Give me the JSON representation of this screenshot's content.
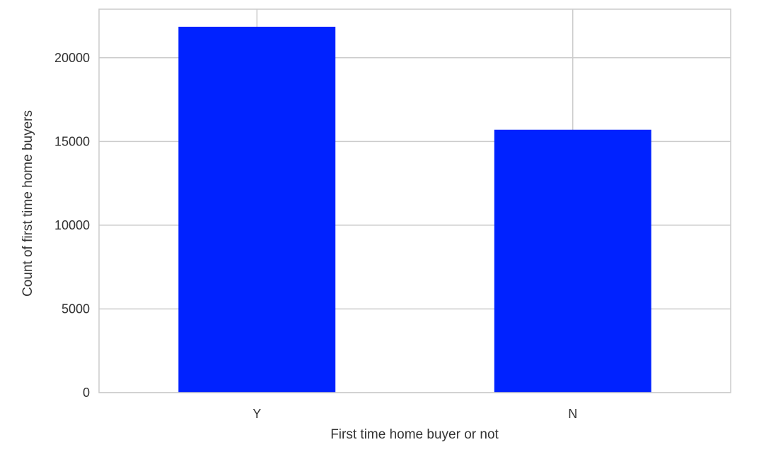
{
  "chart_data": {
    "type": "bar",
    "title": "",
    "xlabel": "First time home buyer or not",
    "ylabel": "Count of first time home buyers",
    "categories": [
      "Y",
      "N"
    ],
    "values": [
      21850,
      15700
    ],
    "ylim": [
      0,
      22900
    ],
    "yticks": [
      0,
      5000,
      10000,
      15000,
      20000
    ],
    "grid": true,
    "bar_color": "#0022ff",
    "grid_color": "#cccccc",
    "frame_color": "#cccccc"
  }
}
